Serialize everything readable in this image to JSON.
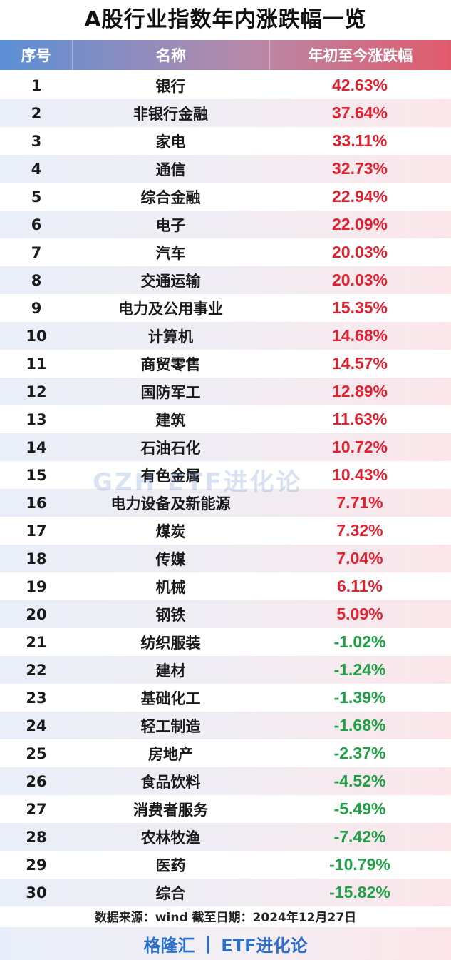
{
  "title": "A股行业指数年内涨跌幅一览",
  "headers": {
    "rank": "序号",
    "name": "名称",
    "change": "年初至今涨跌幅"
  },
  "colors": {
    "positive": "#e0202f",
    "negative": "#1fa045"
  },
  "rows": [
    {
      "rank": "1",
      "name": "银行",
      "change": "42.63%"
    },
    {
      "rank": "2",
      "name": "非银行金融",
      "change": "37.64%"
    },
    {
      "rank": "3",
      "name": "家电",
      "change": "33.11%"
    },
    {
      "rank": "4",
      "name": "通信",
      "change": "32.73%"
    },
    {
      "rank": "5",
      "name": "综合金融",
      "change": "22.94%"
    },
    {
      "rank": "6",
      "name": "电子",
      "change": "22.09%"
    },
    {
      "rank": "7",
      "name": "汽车",
      "change": "20.03%"
    },
    {
      "rank": "8",
      "name": "交通运输",
      "change": "20.03%"
    },
    {
      "rank": "9",
      "name": "电力及公用事业",
      "change": "15.35%"
    },
    {
      "rank": "10",
      "name": "计算机",
      "change": "14.68%"
    },
    {
      "rank": "11",
      "name": "商贸零售",
      "change": "14.57%"
    },
    {
      "rank": "12",
      "name": "国防军工",
      "change": "12.89%"
    },
    {
      "rank": "13",
      "name": "建筑",
      "change": "11.63%"
    },
    {
      "rank": "14",
      "name": "石油石化",
      "change": "10.72%"
    },
    {
      "rank": "15",
      "name": "有色金属",
      "change": "10.43%"
    },
    {
      "rank": "16",
      "name": "电力设备及新能源",
      "change": "7.71%"
    },
    {
      "rank": "17",
      "name": "煤炭",
      "change": "7.32%"
    },
    {
      "rank": "18",
      "name": "传媒",
      "change": "7.04%"
    },
    {
      "rank": "19",
      "name": "机械",
      "change": "6.11%"
    },
    {
      "rank": "20",
      "name": "钢铁",
      "change": "5.09%"
    },
    {
      "rank": "21",
      "name": "纺织服装",
      "change": "-1.02%"
    },
    {
      "rank": "22",
      "name": "建材",
      "change": "-1.24%"
    },
    {
      "rank": "23",
      "name": "基础化工",
      "change": "-1.39%"
    },
    {
      "rank": "24",
      "name": "轻工制造",
      "change": "-1.68%"
    },
    {
      "rank": "25",
      "name": "房地产",
      "change": "-2.37%"
    },
    {
      "rank": "26",
      "name": "食品饮料",
      "change": "-4.52%"
    },
    {
      "rank": "27",
      "name": "消费者服务",
      "change": "-5.49%"
    },
    {
      "rank": "28",
      "name": "农林牧渔",
      "change": "-7.42%"
    },
    {
      "rank": "29",
      "name": "医药",
      "change": "-10.79%"
    },
    {
      "rank": "30",
      "name": "综合",
      "change": "-15.82%"
    }
  ],
  "watermark": "GZH   ETF进化论",
  "footer_note": "数据来源：wind 截至日期：2024年12月27日",
  "footer_brand": {
    "left": "格隆汇",
    "separator": "|",
    "right": "ETF进化论"
  }
}
